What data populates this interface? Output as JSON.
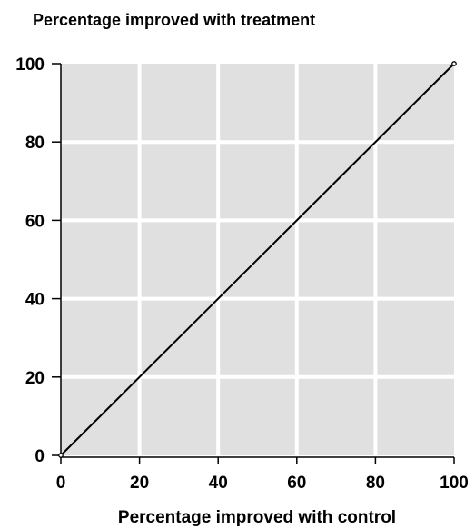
{
  "chart_data": {
    "type": "line",
    "title": "Percentage improved with treatment",
    "xlabel": "Percentage improved with control",
    "ylabel": "",
    "xlim": [
      0,
      100
    ],
    "ylim": [
      0,
      100
    ],
    "x_ticks": [
      0,
      20,
      40,
      60,
      80,
      100
    ],
    "y_ticks": [
      0,
      20,
      40,
      60,
      80,
      100
    ],
    "x_tick_labels": [
      "0",
      "20",
      "40",
      "60",
      "80",
      "100"
    ],
    "y_tick_labels": [
      "0",
      "20",
      "40",
      "60",
      "80",
      "100"
    ],
    "grid": true,
    "series": [
      {
        "x": [
          0,
          100
        ],
        "y": [
          0,
          100
        ]
      }
    ],
    "colors": {
      "panel": "#e0e0e0",
      "grid": "#ffffff",
      "line": "#000000"
    }
  }
}
